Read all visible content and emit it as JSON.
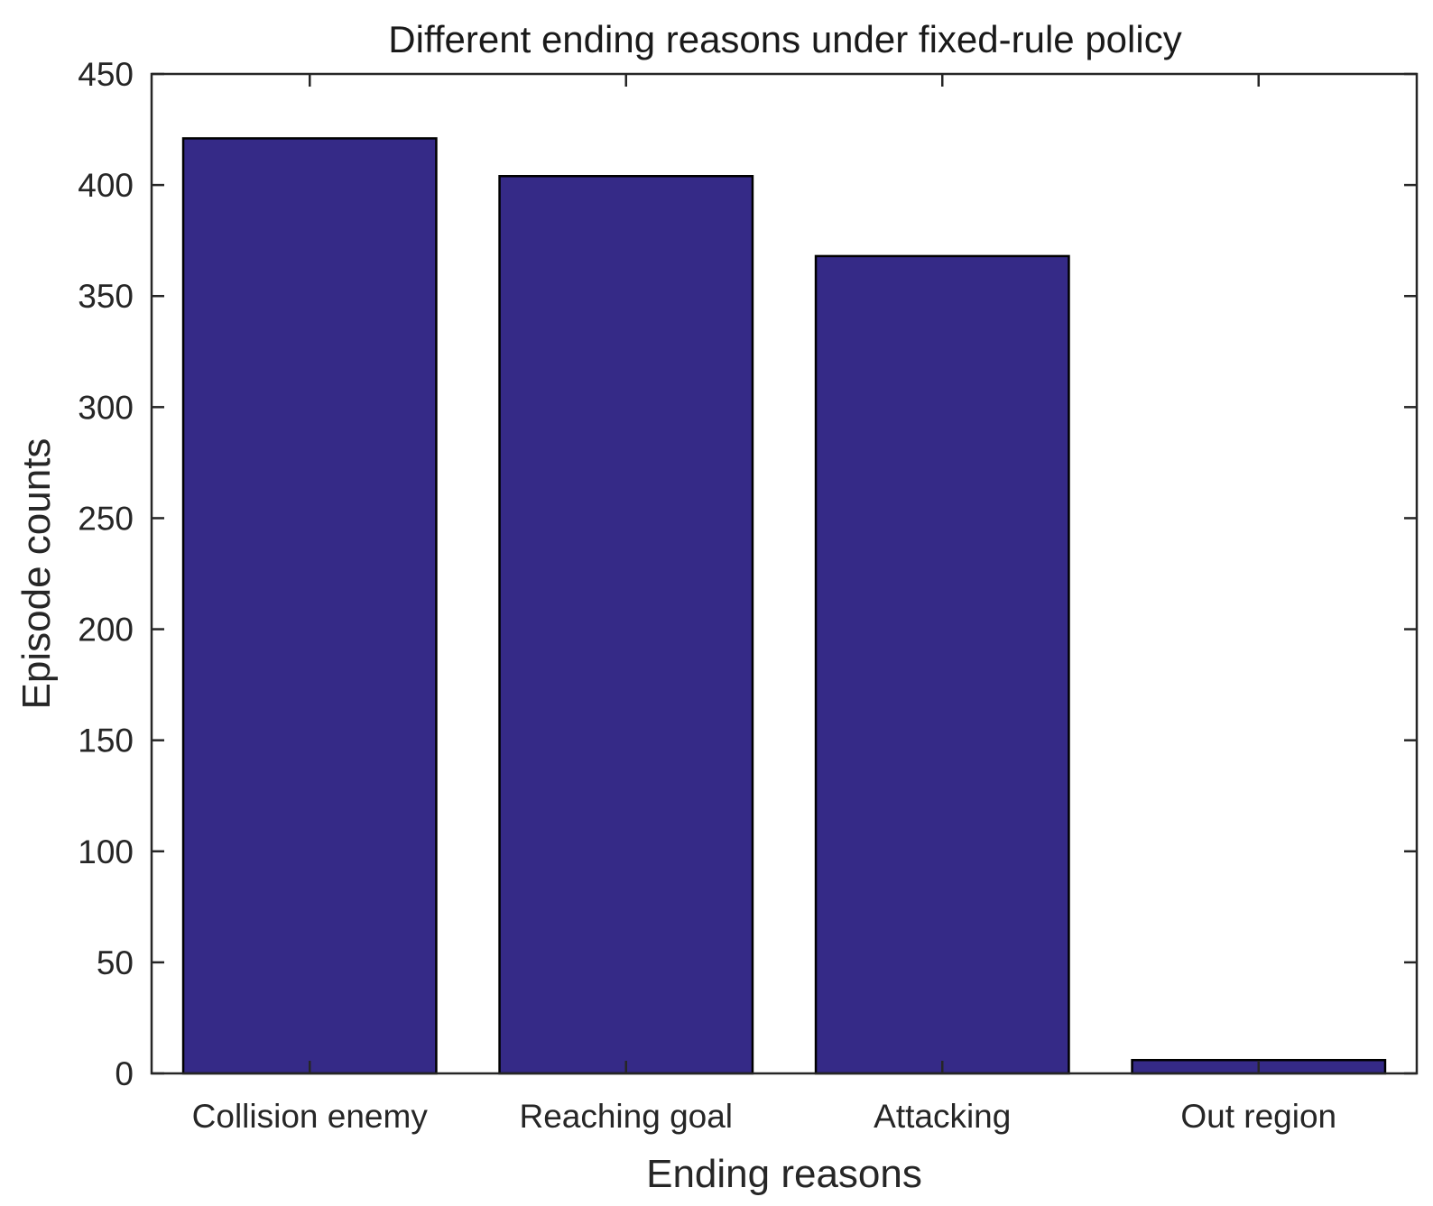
{
  "chart_data": {
    "type": "bar",
    "title": "Different ending reasons under fixed-rule policy",
    "xlabel": "Ending reasons",
    "ylabel": "Episode counts",
    "categories": [
      "Collision enemy",
      "Reaching goal",
      "Attacking",
      "Out region"
    ],
    "values": [
      421,
      404,
      368,
      6
    ],
    "ylim": [
      0,
      450
    ],
    "yticks": [
      0,
      50,
      100,
      150,
      200,
      250,
      300,
      350,
      400,
      450
    ],
    "grid": false,
    "legend": "none",
    "bar_color": "#352a87"
  }
}
